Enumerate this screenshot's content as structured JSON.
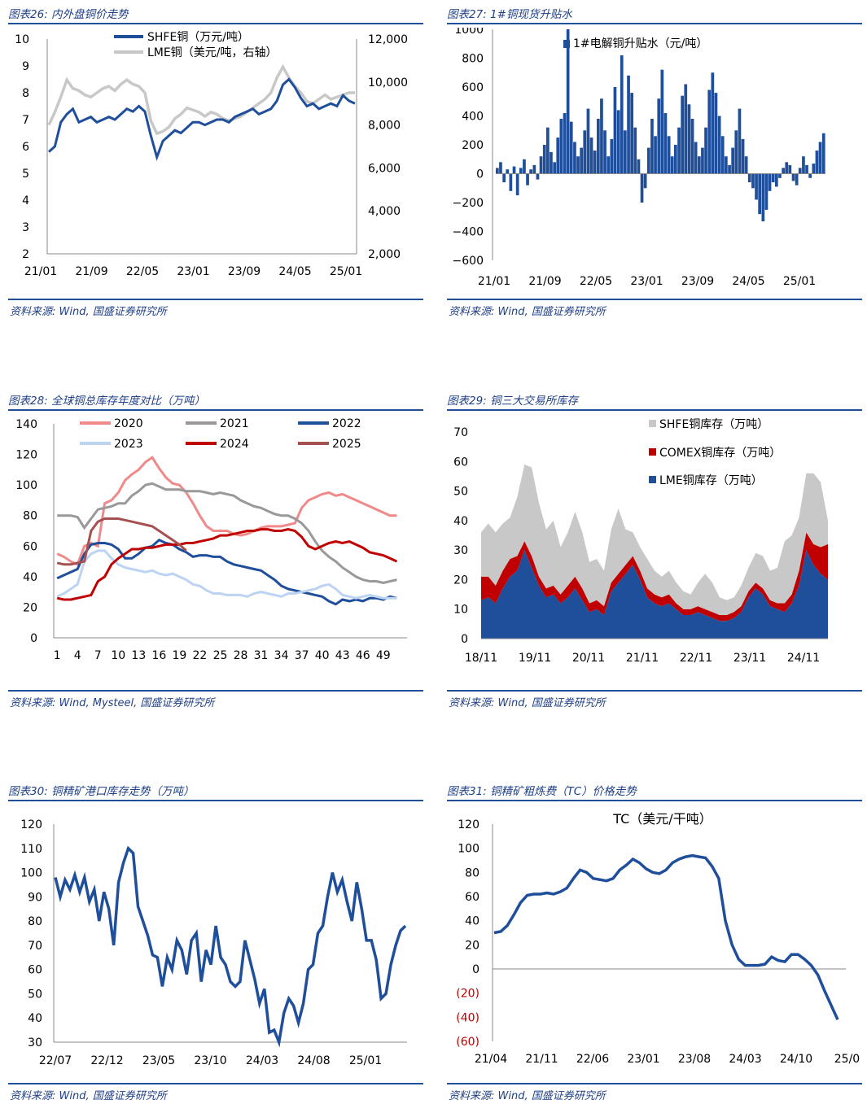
{
  "panels": [
    {
      "title": "图表26:  内外盘铜价走势",
      "source": "资料来源:  Wind, 国盛证券研究所",
      "chart_data": {
        "type": "line",
        "x_ticks": [
          "21/01",
          "21/09",
          "22/05",
          "23/01",
          "23/09",
          "24/05",
          "25/01"
        ],
        "yleft": {
          "min": 2,
          "max": 10,
          "ticks": [
            "2",
            "3",
            "4",
            "5",
            "6",
            "7",
            "8",
            "9",
            "10"
          ]
        },
        "yright": {
          "min": 2000,
          "max": 12000,
          "ticks": [
            "2,000",
            "4,000",
            "6,000",
            "8,000",
            "10,000",
            "12,000"
          ]
        },
        "series": [
          {
            "name": "SHFE铜（万元/吨）",
            "axis": "left",
            "color": "#1f4e9a",
            "values": [
              5.8,
              6.0,
              6.9,
              7.2,
              7.4,
              6.9,
              7.0,
              7.1,
              6.9,
              7.0,
              7.1,
              7.0,
              7.2,
              7.4,
              7.3,
              7.5,
              7.3,
              6.4,
              5.6,
              6.2,
              6.4,
              6.6,
              6.5,
              6.7,
              6.9,
              6.9,
              6.8,
              6.9,
              7.0,
              7.0,
              6.9,
              7.1,
              7.2,
              7.3,
              7.4,
              7.2,
              7.3,
              7.4,
              7.7,
              8.3,
              8.5,
              8.2,
              7.8,
              7.5,
              7.6,
              7.4,
              7.5,
              7.6,
              7.5,
              7.9,
              7.7,
              7.6
            ]
          },
          {
            "name": "LME铜（美元/吨，右轴）",
            "axis": "right",
            "color": "#c8c8c8",
            "values": [
              8000,
              8600,
              9300,
              10100,
              9700,
              9600,
              9400,
              9300,
              9500,
              9700,
              9800,
              9600,
              9900,
              10100,
              9900,
              9800,
              9500,
              8200,
              7600,
              7700,
              7900,
              8300,
              8500,
              8800,
              8700,
              8600,
              8400,
              8600,
              8500,
              8300,
              8200,
              8300,
              8400,
              8600,
              8800,
              9000,
              9200,
              9500,
              10200,
              10700,
              10200,
              9800,
              9500,
              9100,
              9000,
              9200,
              9400,
              9200,
              9300,
              9400,
              9500,
              9500
            ]
          }
        ]
      }
    },
    {
      "title": "图表27:  1#铜现货升贴水",
      "source": "资料来源:  Wind, 国盛证券研究所",
      "chart_data": {
        "type": "bar",
        "x_ticks": [
          "21/01",
          "21/09",
          "22/05",
          "23/01",
          "23/09",
          "24/05",
          "25/01"
        ],
        "ylim": [
          -600,
          1000
        ],
        "y_ticks": [
          "1000",
          "800",
          "600",
          "400",
          "200",
          "0",
          "−200",
          "−400",
          "−600"
        ],
        "series": [
          {
            "name": "1#电解铜升贴水（元/吨）",
            "color": "#1f4e9a",
            "values": [
              40,
              80,
              -60,
              30,
              -120,
              50,
              -150,
              40,
              100,
              -80,
              30,
              60,
              -40,
              120,
              200,
              320,
              150,
              80,
              250,
              380,
              420,
              1000,
              360,
              220,
              120,
              180,
              300,
              450,
              250,
              160,
              380,
              520,
              300,
              120,
              240,
              600,
              440,
              820,
              300,
              680,
              560,
              320,
              100,
              -200,
              -100,
              180,
              380,
              260,
              520,
              720,
              420,
              260,
              120,
              200,
              320,
              540,
              620,
              480,
              380,
              220,
              120,
              180,
              320,
              580,
              700,
              560,
              400,
              260,
              120,
              60,
              180,
              300,
              450,
              240,
              120,
              -60,
              -100,
              -180,
              -280,
              -330,
              -250,
              -120,
              -60,
              -90,
              -30,
              40,
              80,
              60,
              -50,
              -80,
              40,
              120,
              60,
              -30,
              70,
              160,
              220,
              280
            ]
          }
        ]
      }
    },
    {
      "title": "图表28:  全球铜总库存年度对比（万吨）",
      "source": "资料来源:  Wind, Mysteel, 国盛证券研究所",
      "chart_data": {
        "type": "line",
        "x_ticks": [
          "1",
          "4",
          "7",
          "10",
          "13",
          "16",
          "19",
          "22",
          "25",
          "28",
          "31",
          "34",
          "37",
          "40",
          "43",
          "46",
          "49"
        ],
        "ylim": [
          0,
          140
        ],
        "y_ticks": [
          "0",
          "20",
          "40",
          "60",
          "80",
          "100",
          "120",
          "140"
        ],
        "series": [
          {
            "name": "2020",
            "color": "#f08a8a",
            "values": [
              55,
              53,
              50,
              48,
              60,
              62,
              60,
              88,
              90,
              95,
              103,
              107,
              110,
              115,
              118,
              111,
              105,
              101,
              100,
              95,
              88,
              80,
              73,
              70,
              70,
              70,
              68,
              67,
              68,
              70,
              72,
              73,
              73,
              73,
              74,
              75,
              85,
              90,
              92,
              94,
              95,
              93,
              94,
              92,
              90,
              88,
              86,
              84,
              82,
              80,
              80
            ]
          },
          {
            "name": "2021",
            "color": "#999999",
            "values": [
              80,
              80,
              80,
              79,
              72,
              78,
              84,
              85,
              86,
              88,
              88,
              93,
              96,
              100,
              101,
              99,
              97,
              97,
              97,
              96,
              96,
              96,
              95,
              94,
              95,
              94,
              93,
              90,
              88,
              86,
              85,
              83,
              81,
              80,
              80,
              78,
              75,
              70,
              63,
              57,
              53,
              50,
              46,
              43,
              40,
              38,
              37,
              37,
              36,
              37,
              38
            ]
          },
          {
            "name": "2022",
            "color": "#1f4e9a",
            "values": [
              39,
              41,
              43,
              45,
              55,
              61,
              62,
              62,
              61,
              58,
              52,
              52,
              55,
              59,
              60,
              64,
              62,
              61,
              58,
              56,
              53,
              54,
              54,
              53,
              53,
              50,
              48,
              47,
              46,
              45,
              44,
              41,
              38,
              34,
              32,
              31,
              30,
              29,
              28,
              27,
              24,
              22,
              25,
              24,
              25,
              24,
              26,
              26,
              25,
              27,
              26
            ]
          },
          {
            "name": "2023",
            "color": "#bcd3f2",
            "values": [
              27,
              29,
              32,
              35,
              50,
              55,
              57,
              57,
              52,
              48,
              46,
              45,
              44,
              43,
              44,
              42,
              41,
              42,
              40,
              38,
              35,
              34,
              31,
              29,
              29,
              28,
              28,
              28,
              27,
              29,
              30,
              29,
              28,
              27,
              29,
              29,
              30,
              31,
              32,
              34,
              35,
              32,
              28,
              27,
              26,
              27,
              28,
              27,
              26,
              26,
              26
            ]
          },
          {
            "name": "2024",
            "color": "#c00000",
            "values": [
              26,
              25,
              25,
              26,
              27,
              28,
              37,
              40,
              48,
              52,
              55,
              58,
              58,
              59,
              59,
              60,
              61,
              61,
              61,
              62,
              62,
              63,
              64,
              65,
              67,
              67,
              68,
              69,
              70,
              70,
              71,
              71,
              70,
              70,
              71,
              70,
              66,
              60,
              58,
              60,
              62,
              63,
              62,
              63,
              61,
              59,
              56,
              55,
              54,
              52,
              50
            ]
          },
          {
            "name": "2025",
            "color": "#a65151",
            "values": [
              49,
              48,
              48,
              49,
              50,
              70,
              76,
              78,
              78,
              78,
              77,
              76,
              75,
              74,
              73,
              70,
              67,
              64,
              61,
              57
            ]
          }
        ]
      }
    },
    {
      "title": "图表29:  铜三大交易所库存",
      "source": "资料来源:  Wind, 国盛证券研究所",
      "chart_data": {
        "type": "area",
        "x_ticks": [
          "18/11",
          "19/11",
          "20/11",
          "21/11",
          "22/11",
          "23/11",
          "24/11"
        ],
        "ylim": [
          0,
          70
        ],
        "y_ticks": [
          "0",
          "10",
          "20",
          "30",
          "40",
          "50",
          "60",
          "70"
        ],
        "series": [
          {
            "name": "LME铜库存（万吨）",
            "color": "#1f4e9a",
            "values": [
              13,
              14,
              12,
              17,
              21,
              23,
              30,
              24,
              18,
              14,
              15,
              12,
              14,
              17,
              13,
              9,
              10,
              8,
              16,
              19,
              22,
              25,
              20,
              14,
              12,
              11,
              12,
              10,
              8,
              8,
              9,
              8,
              7,
              6,
              6,
              7,
              9,
              14,
              17,
              15,
              11,
              10,
              9,
              12,
              18,
              30,
              25,
              22,
              20
            ]
          },
          {
            "name": "COMEX铜库存（万吨）",
            "color": "#c00000",
            "values": [
              8,
              7,
              6,
              6,
              6,
              5,
              3,
              4,
              3,
              3,
              3,
              3,
              4,
              4,
              4,
              3,
              3,
              3,
              3,
              3,
              3,
              3,
              3,
              3,
              3,
              3,
              3,
              2,
              2,
              2,
              2,
              2,
              2,
              2,
              2,
              2,
              2,
              2,
              2,
              2,
              2,
              2,
              3,
              3,
              5,
              6,
              7,
              9,
              12
            ]
          },
          {
            "name": "SHFE铜库存（万吨）",
            "color": "#c8c8c8",
            "values": [
              15,
              18,
              18,
              16,
              14,
              20,
              26,
              30,
              25,
              20,
              22,
              16,
              18,
              22,
              19,
              14,
              14,
              12,
              18,
              22,
              12,
              8,
              8,
              10,
              8,
              7,
              8,
              7,
              6,
              5,
              8,
              12,
              10,
              6,
              5,
              5,
              7,
              8,
              10,
              11,
              10,
              12,
              21,
              20,
              18,
              20,
              24,
              22,
              8
            ]
          }
        ]
      }
    },
    {
      "title": "图表30:  铜精矿港口库存走势（万吨）",
      "source": "资料来源:  Wind, 国盛证券研究所",
      "chart_data": {
        "type": "line",
        "x_ticks": [
          "22/07",
          "22/12",
          "23/05",
          "23/10",
          "24/03",
          "24/08",
          "25/01"
        ],
        "ylim": [
          30,
          120
        ],
        "y_ticks": [
          "30",
          "40",
          "50",
          "60",
          "70",
          "80",
          "90",
          "100",
          "110",
          "120"
        ],
        "series": [
          {
            "name": "铜精矿港口库存",
            "color": "#1f4e9a",
            "values": [
              98,
              90,
              97,
              93,
              99,
              92,
              98,
              88,
              93,
              80,
              92,
              85,
              70,
              96,
              104,
              110,
              108,
              86,
              80,
              74,
              66,
              65,
              53,
              65,
              60,
              72,
              68,
              58,
              72,
              75,
              55,
              68,
              62,
              78,
              65,
              62,
              55,
              53,
              55,
              72,
              64,
              56,
              46,
              52,
              34,
              35,
              30,
              42,
              48,
              45,
              38,
              46,
              60,
              62,
              75,
              78,
              90,
              100,
              92,
              97,
              88,
              80,
              96,
              85,
              72,
              72,
              64,
              48,
              50,
              62,
              70,
              76,
              78
            ]
          }
        ]
      }
    },
    {
      "title": "图表31:  铜精矿粗炼费（TC）价格走势",
      "source": "资料来源:  Wind, 国盛证券研究所",
      "chart_data": {
        "type": "line",
        "title": "TC（美元/干吨）",
        "x_ticks": [
          "21/04",
          "21/11",
          "22/06",
          "23/01",
          "23/08",
          "24/03",
          "24/10",
          "25/0"
        ],
        "ylim": [
          -60,
          120
        ],
        "y_ticks": [
          "120",
          "100",
          "80",
          "60",
          "40",
          "20",
          "0",
          "(20)",
          "(40)",
          "(60)"
        ],
        "negative_tick_color": "#c00000",
        "series": [
          {
            "name": "TC",
            "color": "#1f4e9a",
            "values": [
              30,
              31,
              36,
              45,
              55,
              61,
              62,
              62,
              63,
              62,
              64,
              67,
              75,
              82,
              80,
              75,
              74,
              73,
              75,
              82,
              86,
              91,
              88,
              83,
              80,
              79,
              82,
              88,
              91,
              93,
              94,
              93,
              92,
              85,
              75,
              40,
              20,
              8,
              3,
              3,
              3,
              4,
              10,
              7,
              6,
              12,
              12,
              8,
              3,
              -5,
              -18,
              -30,
              -42
            ]
          }
        ]
      }
    }
  ]
}
